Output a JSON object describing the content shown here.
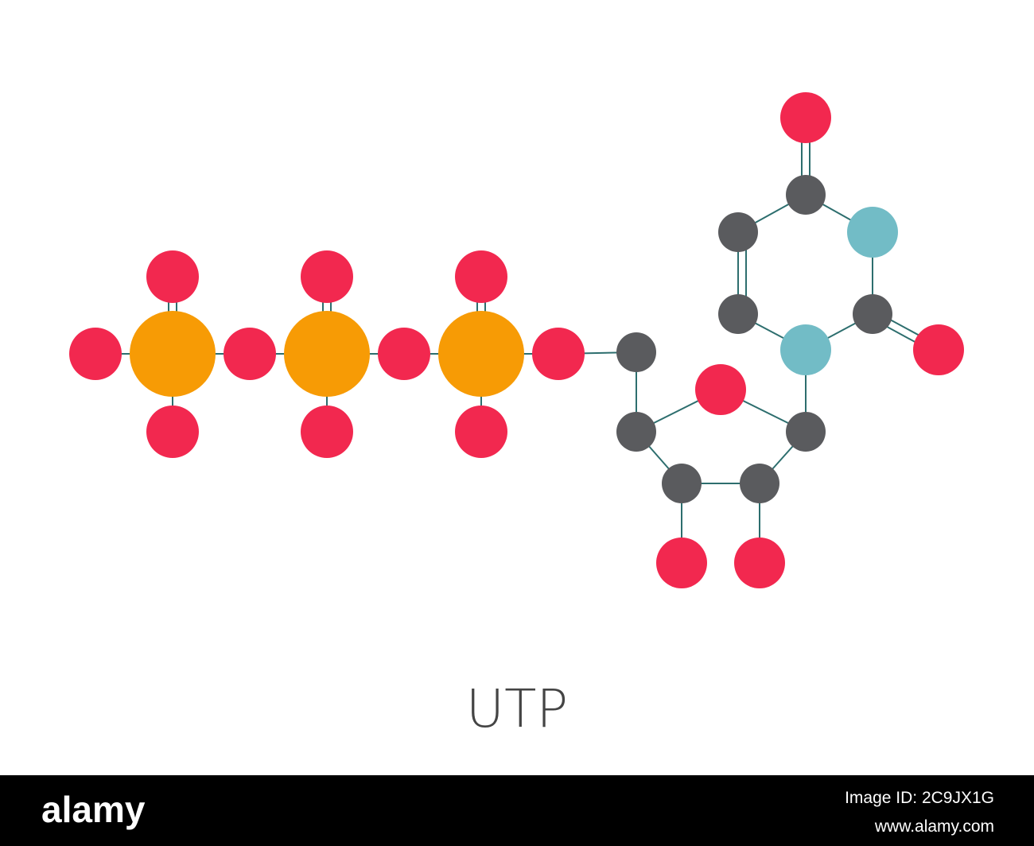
{
  "title": "UTP",
  "footer": {
    "logo": "alamy",
    "image_id": "Image ID: 2C9JX1G",
    "url": "www.alamy.com"
  }
}
